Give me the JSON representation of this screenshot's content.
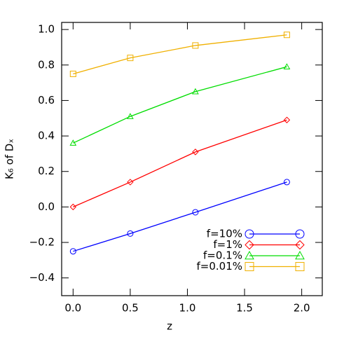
{
  "chart_data": {
    "type": "line",
    "x_label": "z",
    "y_label": "K₆ of Dₓ",
    "x": [
      0,
      0.5,
      1.07,
      1.87
    ],
    "series": [
      {
        "name": "f=10%",
        "color": "#0000ff",
        "marker": "circle",
        "values": [
          -0.25,
          -0.15,
          -0.03,
          0.14
        ]
      },
      {
        "name": "f=1%",
        "color": "#ff0000",
        "marker": "diamond",
        "values": [
          0.0,
          0.14,
          0.31,
          0.49
        ]
      },
      {
        "name": "f=0.1%",
        "color": "#00dd00",
        "marker": "triangle",
        "values": [
          0.36,
          0.51,
          0.65,
          0.79
        ]
      },
      {
        "name": "f=0.01%",
        "color": "#f0b000",
        "marker": "square",
        "values": [
          0.75,
          0.84,
          0.91,
          0.97
        ]
      }
    ],
    "xlim": [
      -0.1,
      2.18
    ],
    "xticks": [
      {
        "value": 0,
        "label": "0.0"
      },
      {
        "value": 0.5,
        "label": "0.5"
      },
      {
        "value": 1,
        "label": "1.0"
      },
      {
        "value": 1.5,
        "label": "1.5"
      },
      {
        "value": 2,
        "label": "2.0"
      }
    ],
    "ylim": [
      -0.5,
      1.04
    ],
    "yticks": [
      {
        "value": -0.4,
        "label": "−0.4"
      },
      {
        "value": -0.2,
        "label": "−0.2"
      },
      {
        "value": 0,
        "label": "0.0"
      },
      {
        "value": 0.2,
        "label": "0.2"
      },
      {
        "value": 0.4,
        "label": "0.4"
      },
      {
        "value": 0.6,
        "label": "0.6"
      },
      {
        "value": 0.8,
        "label": "0.8"
      },
      {
        "value": 1,
        "label": "1.0"
      }
    ],
    "legend": "lower-right"
  }
}
